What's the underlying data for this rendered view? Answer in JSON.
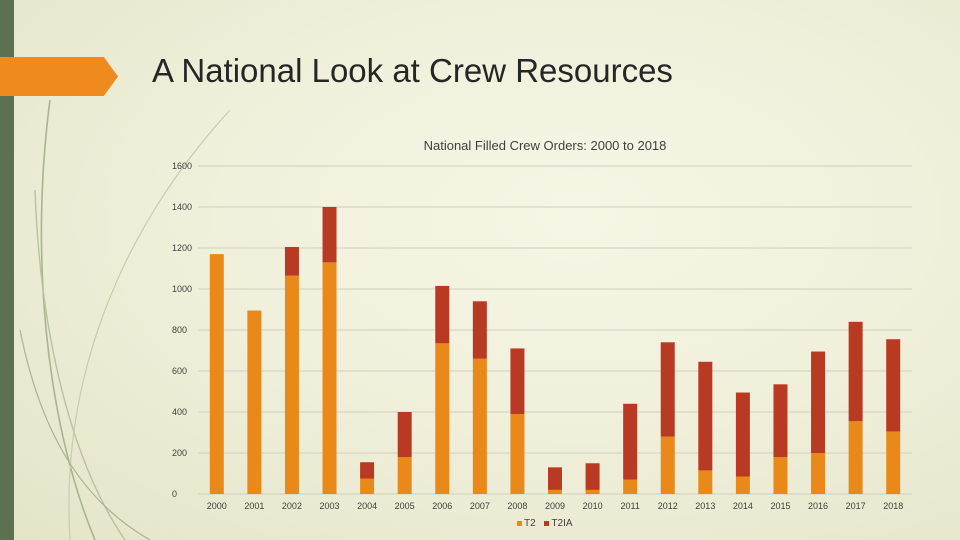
{
  "slide": {
    "title": "A National Look at Crew Resources"
  },
  "colors": {
    "left_bar": "#5d7050",
    "accent": "#ef8a1f",
    "t2": "#e8891a",
    "t2ia": "#b83a23",
    "grid": "#cfcfc0",
    "text": "#404040"
  },
  "chart_data": {
    "type": "bar",
    "stacked": true,
    "title": "National Filled Crew Orders:  2000 to 2018",
    "categories": [
      "2000",
      "2001",
      "2002",
      "2003",
      "2004",
      "2005",
      "2006",
      "2007",
      "2008",
      "2009",
      "2010",
      "2011",
      "2012",
      "2013",
      "2014",
      "2015",
      "2016",
      "2017",
      "2018"
    ],
    "series": [
      {
        "name": "T2",
        "values": [
          1170,
          895,
          1065,
          1130,
          75,
          180,
          735,
          660,
          390,
          20,
          20,
          70,
          280,
          115,
          85,
          180,
          200,
          355,
          305
        ]
      },
      {
        "name": "T2IA",
        "values": [
          0,
          0,
          140,
          270,
          80,
          220,
          280,
          280,
          320,
          110,
          130,
          370,
          460,
          530,
          410,
          355,
          495,
          485,
          450
        ]
      }
    ],
    "ylim": [
      0,
      1600
    ],
    "yticks": [
      0,
      200,
      400,
      600,
      800,
      1000,
      1200,
      1400,
      1600
    ],
    "grid": true,
    "legend_position": "bottom"
  }
}
